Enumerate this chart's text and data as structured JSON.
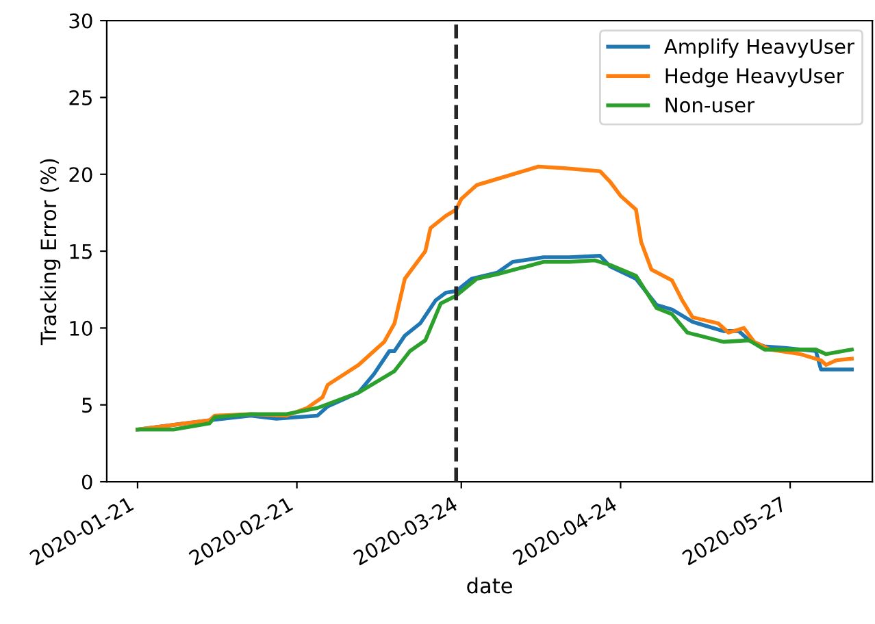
{
  "chart_data": {
    "type": "line",
    "xlabel": "date",
    "ylabel": "Tracking Error (%)",
    "xlim": [
      "2020-01-15",
      "2020-06-12"
    ],
    "ylim": [
      0,
      30
    ],
    "yticks": [
      0,
      5,
      10,
      15,
      20,
      25,
      30
    ],
    "xticks": [
      "2020-01-21",
      "2020-02-21",
      "2020-03-24",
      "2020-04-24",
      "2020-05-27"
    ],
    "grid": false,
    "legend": "top right",
    "marker": "none",
    "line_style": "solid",
    "ref_lines": [
      {
        "axis": "x",
        "value": "2020-03-23",
        "label": null,
        "color": "#262626",
        "line_style": "dashed"
      }
    ],
    "series": [
      {
        "name": "Amplify HeavyUser",
        "color": "#1f77b4",
        "x": [
          "2020-01-21",
          "2020-02-04",
          "2020-02-12",
          "2020-02-17",
          "2020-02-25",
          "2020-02-27",
          "2020-03-04",
          "2020-03-07",
          "2020-03-10",
          "2020-03-11",
          "2020-03-13",
          "2020-03-16",
          "2020-03-19",
          "2020-03-21",
          "2020-03-23",
          "2020-03-26",
          "2020-03-31",
          "2020-04-03",
          "2020-04-09",
          "2020-04-14",
          "2020-04-20",
          "2020-04-22",
          "2020-04-27",
          "2020-05-01",
          "2020-05-04",
          "2020-05-08",
          "2020-05-14",
          "2020-05-17",
          "2020-05-19",
          "2020-05-22",
          "2020-05-26",
          "2020-06-01",
          "2020-06-02",
          "2020-06-08"
        ],
        "values": [
          3.4,
          4.0,
          4.3,
          4.1,
          4.3,
          4.9,
          5.8,
          7.0,
          8.5,
          8.5,
          9.5,
          10.3,
          11.8,
          12.3,
          12.4,
          13.2,
          13.6,
          14.3,
          14.6,
          14.6,
          14.7,
          14.0,
          13.2,
          11.5,
          11.2,
          10.4,
          9.8,
          9.8,
          9.2,
          8.8,
          8.7,
          8.5,
          7.3,
          7.3
        ]
      },
      {
        "name": "Hedge HeavyUser",
        "color": "#ff7f0e",
        "x": [
          "2020-01-21",
          "2020-01-28",
          "2020-02-04",
          "2020-02-05",
          "2020-02-12",
          "2020-02-19",
          "2020-02-23",
          "2020-02-26",
          "2020-02-27",
          "2020-03-04",
          "2020-03-09",
          "2020-03-11",
          "2020-03-13",
          "2020-03-17",
          "2020-03-18",
          "2020-03-21",
          "2020-03-23",
          "2020-03-24",
          "2020-03-27",
          "2020-03-30",
          "2020-04-04",
          "2020-04-08",
          "2020-04-13",
          "2020-04-20",
          "2020-04-22",
          "2020-04-24",
          "2020-04-27",
          "2020-04-28",
          "2020-04-30",
          "2020-05-04",
          "2020-05-06",
          "2020-05-08",
          "2020-05-13",
          "2020-05-15",
          "2020-05-18",
          "2020-05-20",
          "2020-05-23",
          "2020-05-29",
          "2020-06-02",
          "2020-06-03",
          "2020-06-05",
          "2020-06-08"
        ],
        "values": [
          3.4,
          3.7,
          4.0,
          4.3,
          4.4,
          4.3,
          4.8,
          5.5,
          6.3,
          7.6,
          9.1,
          10.3,
          13.2,
          15.0,
          16.5,
          17.3,
          17.7,
          18.4,
          19.3,
          19.6,
          20.1,
          20.5,
          20.4,
          20.2,
          19.5,
          18.6,
          17.7,
          15.6,
          13.8,
          13.1,
          11.8,
          10.7,
          10.3,
          9.7,
          10.0,
          9.1,
          8.6,
          8.3,
          7.9,
          7.6,
          7.9,
          8.0
        ]
      },
      {
        "name": "Non-user",
        "color": "#2ca02c",
        "x": [
          "2020-01-21",
          "2020-01-28",
          "2020-02-04",
          "2020-02-05",
          "2020-02-12",
          "2020-02-19",
          "2020-02-25",
          "2020-03-04",
          "2020-03-11",
          "2020-03-14",
          "2020-03-17",
          "2020-03-20",
          "2020-03-23",
          "2020-03-27",
          "2020-03-31",
          "2020-04-09",
          "2020-04-14",
          "2020-04-19",
          "2020-04-22",
          "2020-04-27",
          "2020-05-01",
          "2020-05-04",
          "2020-05-07",
          "2020-05-14",
          "2020-05-19",
          "2020-05-22",
          "2020-06-01",
          "2020-06-03",
          "2020-06-08"
        ],
        "values": [
          3.4,
          3.4,
          3.8,
          4.2,
          4.4,
          4.4,
          4.8,
          5.8,
          7.2,
          8.5,
          9.2,
          11.6,
          12.1,
          13.2,
          13.5,
          14.3,
          14.3,
          14.4,
          14.1,
          13.4,
          11.3,
          10.9,
          9.7,
          9.1,
          9.2,
          8.6,
          8.6,
          8.3,
          8.6
        ]
      }
    ]
  }
}
